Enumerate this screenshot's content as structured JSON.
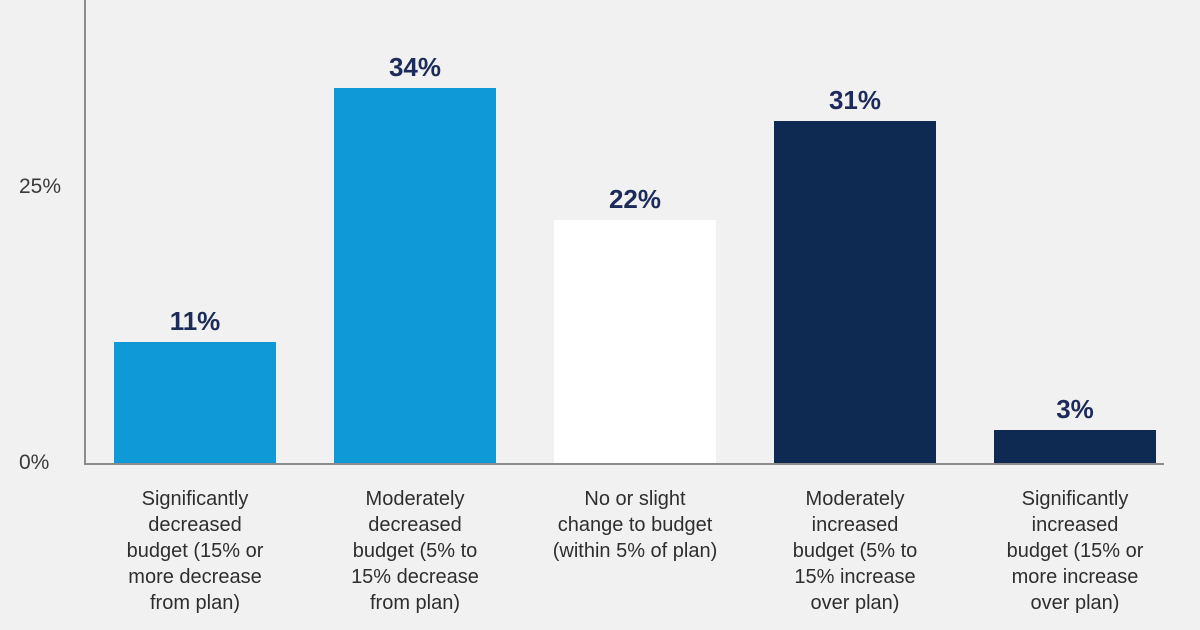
{
  "page": {
    "background_color": "#f1f1f1"
  },
  "chart_data": {
    "type": "bar",
    "title": "",
    "xlabel": "",
    "ylabel": "",
    "categories": [
      "Significantly\ndecreased\nbudget (15% or\nmore decrease\nfrom plan)",
      "Moderately\ndecreased\nbudget (5% to\n15% decrease\nfrom plan)",
      "No or slight\nchange to budget\n(within 5% of plan)",
      "Moderately\nincreased\nbudget (5% to\n15% increase\nover plan)",
      "Significantly\nincreased\nbudget (15% or\nmore increase\nover plan)"
    ],
    "values": [
      11,
      34,
      22,
      31,
      3
    ],
    "display_values": [
      "11%",
      "34%",
      "22%",
      "31%",
      "3%"
    ],
    "bar_colors": [
      "#0f9ad7",
      "#0f9ad7",
      "#ffffff",
      "#0e2a52",
      "#0e2a52"
    ],
    "value_label_color": "#1c2b59",
    "ylim": [
      0,
      42
    ],
    "y_ticks": [
      {
        "value": 0,
        "label": "0%"
      },
      {
        "value": 25,
        "label": "25%"
      }
    ],
    "grid": false,
    "legend_position": "none",
    "axis_color": "#8c8c8c",
    "category_label_color": "#2e2e2e"
  }
}
